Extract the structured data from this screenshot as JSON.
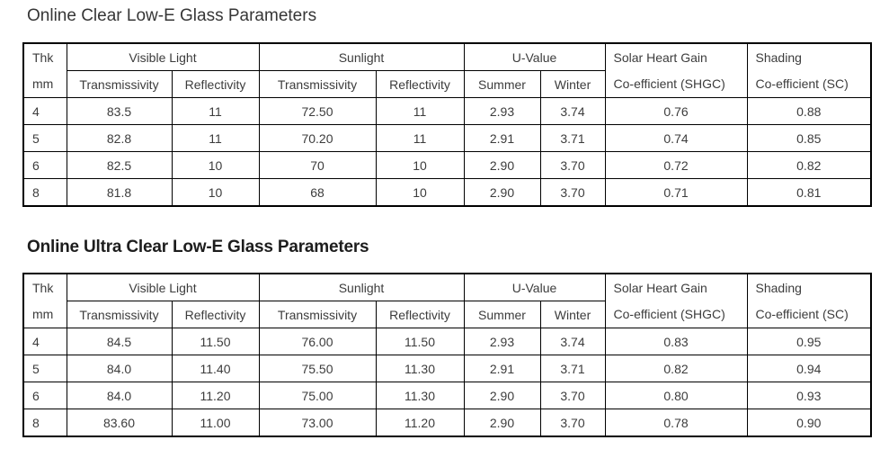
{
  "page": {
    "background": "#ffffff",
    "border_color": "#000000",
    "table_text_color": "#3c3c3c"
  },
  "tables": [
    {
      "title": "Online Clear Low-E Glass Parameters",
      "header": {
        "thk_line1": "Thk",
        "thk_line2": "mm",
        "visible_light": "Visible Light",
        "sunlight": "Sunlight",
        "u_value": "U-Value",
        "sub": [
          "Transmissivity",
          "Reflectivity",
          "Transmissivity",
          "Reflectivity",
          "Summer",
          "Winter"
        ],
        "shgc_line1": "Solar Heart Gain",
        "shgc_line2": "Co-efficient (SHGC)",
        "sc_line1": "Shading",
        "sc_line2": "Co-efficient (SC)"
      },
      "rows": [
        [
          "4",
          "83.5",
          "11",
          "72.50",
          "11",
          "2.93",
          "3.74",
          "0.76",
          "0.88"
        ],
        [
          "5",
          "82.8",
          "11",
          "70.20",
          "11",
          "2.91",
          "3.71",
          "0.74",
          "0.85"
        ],
        [
          "6",
          "82.5",
          "10",
          "70",
          "10",
          "2.90",
          "3.70",
          "0.72",
          "0.82"
        ],
        [
          "8",
          "81.8",
          "10",
          "68",
          "10",
          "2.90",
          "3.70",
          "0.71",
          "0.81"
        ]
      ]
    },
    {
      "title": "Online Ultra Clear Low-E Glass Parameters",
      "header": {
        "thk_line1": "Thk",
        "thk_line2": "mm",
        "visible_light": "Visible Light",
        "sunlight": "Sunlight",
        "u_value": "U-Value",
        "sub": [
          "Transmissivity",
          "Reflectivity",
          "Transmissivity",
          "Reflectivity",
          "Summer",
          "Winter"
        ],
        "shgc_line1": "Solar Heart Gain",
        "shgc_line2": "Co-efficient (SHGC)",
        "sc_line1": "Shading",
        "sc_line2": "Co-efficient (SC)"
      },
      "rows": [
        [
          "4",
          "84.5",
          "11.50",
          "76.00",
          "11.50",
          "2.93",
          "3.74",
          "0.83",
          "0.95"
        ],
        [
          "5",
          "84.0",
          "11.40",
          "75.50",
          "11.30",
          "2.91",
          "3.71",
          "0.82",
          "0.94"
        ],
        [
          "6",
          "84.0",
          "11.20",
          "75.00",
          "11.30",
          "2.90",
          "3.70",
          "0.80",
          "0.93"
        ],
        [
          "8",
          "83.60",
          "11.00",
          "73.00",
          "11.20",
          "2.90",
          "3.70",
          "0.78",
          "0.90"
        ]
      ]
    }
  ]
}
